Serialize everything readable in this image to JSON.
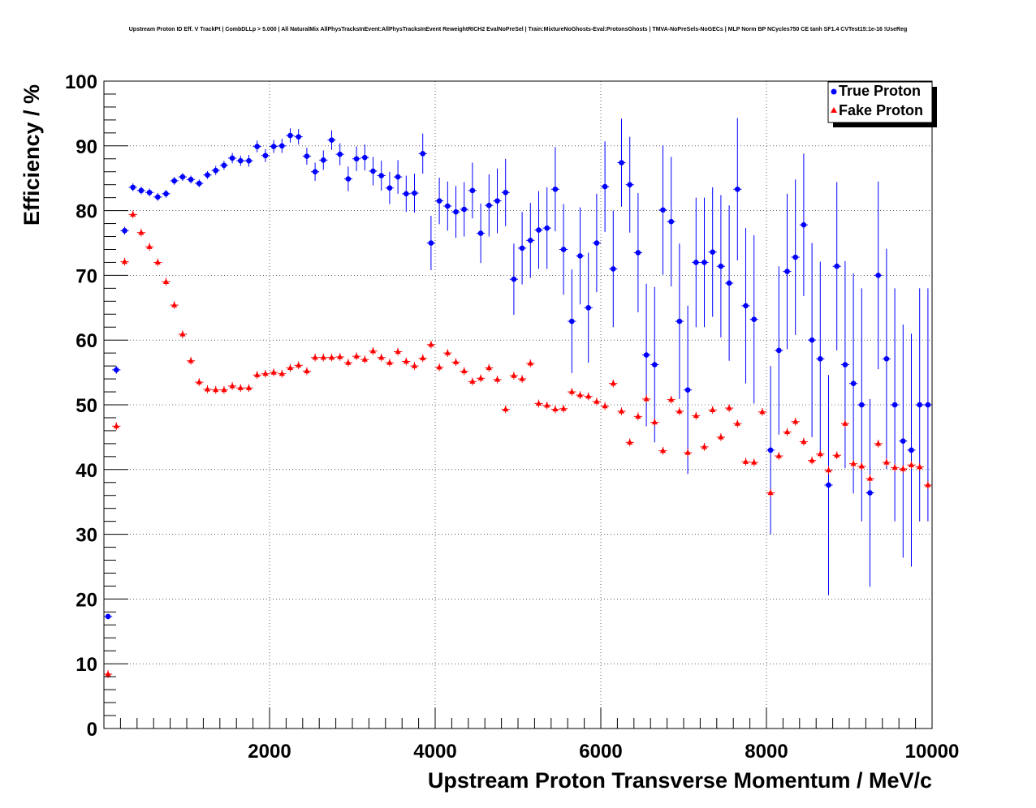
{
  "chart_data": {
    "type": "scatter",
    "title": "Upstream Proton ID Eff. V TrackPt | CombDLLp > 5.000 | All NaturalMix AllPhysTracksInEvent:AllPhysTracksInEvent ReweightRICH2 EvalNoPreSel | Train:MixtureNoGhosts-Eval:ProtonsGhosts | TMVA-NoPreSels-NoGECs | MLP Norm BP NCycles750 CE tanh SF1.4 CVTest15:1e-16 !UseReg",
    "xlabel": "Upstream Proton Transverse Momentum / MeV/c",
    "ylabel": "Efficiency / %",
    "xlim": [
      0,
      10000
    ],
    "ylim": [
      0,
      100
    ],
    "x_ticks": [
      2000,
      4000,
      6000,
      8000,
      10000
    ],
    "y_ticks": [
      0,
      10,
      20,
      30,
      40,
      50,
      60,
      70,
      80,
      90,
      100
    ],
    "grid": true,
    "legend_position": "top-right",
    "series": [
      {
        "name": "True Proton",
        "color": "#0000ff",
        "marker": "circle",
        "x": [
          50,
          150,
          250,
          350,
          450,
          550,
          650,
          750,
          850,
          950,
          1050,
          1150,
          1250,
          1350,
          1450,
          1550,
          1650,
          1750,
          1850,
          1950,
          2050,
          2150,
          2250,
          2350,
          2450,
          2550,
          2650,
          2750,
          2850,
          2950,
          3050,
          3150,
          3250,
          3350,
          3450,
          3550,
          3650,
          3750,
          3850,
          3950,
          4050,
          4150,
          4250,
          4350,
          4450,
          4550,
          4650,
          4750,
          4850,
          4950,
          5050,
          5150,
          5250,
          5350,
          5450,
          5550,
          5650,
          5750,
          5850,
          5950,
          6050,
          6150,
          6250,
          6350,
          6450,
          6550,
          6650,
          6750,
          6850,
          6950,
          7050,
          7150,
          7250,
          7350,
          7450,
          7550,
          7650,
          7750,
          7850,
          7950,
          8050,
          8150,
          8250,
          8350,
          8450,
          8550,
          8650,
          8750,
          8850,
          8950,
          9050,
          9150,
          9250,
          9350,
          9450,
          9550,
          9650,
          9750,
          9850,
          9950
        ],
        "y": [
          17.3,
          55.4,
          76.9,
          83.6,
          83.1,
          82.8,
          82.1,
          82.6,
          84.6,
          85.2,
          84.8,
          84.2,
          85.5,
          86.2,
          87.0,
          88.1,
          87.7,
          87.7,
          89.9,
          88.5,
          89.9,
          90.0,
          91.6,
          91.4,
          88.4,
          86.0,
          87.8,
          90.9,
          88.7,
          84.9,
          88.0,
          88.2,
          86.1,
          85.4,
          83.5,
          85.2,
          82.6,
          82.7,
          88.8,
          75.0,
          81.5,
          80.7,
          79.8,
          80.2,
          83.1,
          76.5,
          80.8,
          81.5,
          82.8,
          69.4,
          74.2,
          75.4,
          77.0,
          77.3,
          83.3,
          74.0,
          62.9,
          73.0,
          65.0,
          75.0,
          83.7,
          71.0,
          87.4,
          84.0,
          73.5,
          57.7,
          56.2,
          80.1,
          78.3,
          62.9,
          52.3,
          72.0,
          72.0,
          73.6,
          71.4,
          68.8,
          83.3,
          65.3,
          63.2,
          null,
          43.0,
          58.4,
          70.6,
          72.8,
          77.8,
          60.0,
          57.1,
          37.6,
          71.4,
          56.2,
          53.3,
          50.0,
          36.4,
          70.0,
          57.1,
          50.0,
          44.4,
          43.0,
          50.0,
          50.0
        ],
        "err": [
          0.4,
          0.6,
          0.6,
          0.6,
          0.6,
          0.6,
          0.6,
          0.6,
          0.6,
          0.6,
          0.6,
          0.6,
          0.6,
          0.7,
          0.7,
          0.8,
          0.8,
          0.9,
          0.9,
          1.0,
          1.0,
          1.1,
          1.1,
          1.2,
          1.3,
          1.4,
          1.5,
          1.5,
          1.7,
          1.9,
          1.9,
          2.0,
          2.2,
          2.3,
          2.5,
          2.6,
          2.8,
          3.0,
          3.1,
          4.2,
          3.6,
          3.8,
          4.0,
          4.2,
          4.3,
          4.6,
          4.8,
          5.0,
          5.2,
          5.5,
          5.6,
          5.8,
          6.0,
          6.3,
          6.5,
          7.0,
          8.0,
          7.5,
          8.5,
          7.6,
          7.0,
          9.0,
          6.8,
          7.4,
          9.2,
          11.0,
          12.0,
          10.0,
          10.0,
          12.0,
          13.0,
          10.0,
          10.0,
          10.0,
          11.0,
          12.0,
          11.0,
          12.0,
          13.0,
          null,
          13.0,
          13.0,
          12.0,
          12.0,
          11.0,
          15.0,
          15.0,
          17.0,
          13.0,
          16.0,
          17.0,
          18.0,
          14.5,
          14.5,
          17.0,
          18.0,
          18.0,
          18.0,
          18.0,
          18.0
        ]
      },
      {
        "name": "Fake Proton",
        "color": "#ff0000",
        "marker": "triangle",
        "x": [
          50,
          150,
          250,
          350,
          450,
          550,
          650,
          750,
          850,
          950,
          1050,
          1150,
          1250,
          1350,
          1450,
          1550,
          1650,
          1750,
          1850,
          1950,
          2050,
          2150,
          2250,
          2350,
          2450,
          2550,
          2650,
          2750,
          2850,
          2950,
          3050,
          3150,
          3250,
          3350,
          3450,
          3550,
          3650,
          3750,
          3850,
          3950,
          4050,
          4150,
          4250,
          4350,
          4450,
          4550,
          4650,
          4750,
          4850,
          4950,
          5050,
          5150,
          5250,
          5350,
          5450,
          5550,
          5650,
          5750,
          5850,
          5950,
          6050,
          6150,
          6250,
          6350,
          6450,
          6550,
          6650,
          6750,
          6850,
          6950,
          7050,
          7150,
          7250,
          7350,
          7450,
          7550,
          7650,
          7750,
          7850,
          7950,
          8050,
          8150,
          8250,
          8350,
          8450,
          8550,
          8650,
          8750,
          8850,
          8950,
          9050,
          9150,
          9250,
          9350,
          9450,
          9550,
          9650,
          9750,
          9850,
          9950
        ],
        "y": [
          8.4,
          46.7,
          72.1,
          79.4,
          76.6,
          74.4,
          72.0,
          69.0,
          65.4,
          60.9,
          56.8,
          53.5,
          52.4,
          52.3,
          52.3,
          52.9,
          52.6,
          52.6,
          54.6,
          54.8,
          55.0,
          54.8,
          55.7,
          56.1,
          55.2,
          57.3,
          57.3,
          57.3,
          57.4,
          56.5,
          57.5,
          57.0,
          58.3,
          57.3,
          56.5,
          58.2,
          56.7,
          56.0,
          57.2,
          59.3,
          55.8,
          58.0,
          56.6,
          55.2,
          53.6,
          54.1,
          55.7,
          53.9,
          49.3,
          54.5,
          54.0,
          56.4,
          50.2,
          49.9,
          49.3,
          49.4,
          52.0,
          51.5,
          51.3,
          50.5,
          49.8,
          53.3,
          49.0,
          44.2,
          48.2,
          50.9,
          47.3,
          42.9,
          50.8,
          49.0,
          42.6,
          48.3,
          43.5,
          49.2,
          45.0,
          49.5,
          47.1,
          41.2,
          41.1,
          48.9,
          36.4,
          42.1,
          45.8,
          47.4,
          44.3,
          41.4,
          42.4,
          39.9,
          42.2,
          47.1,
          40.9,
          40.5,
          38.6,
          44.0,
          41.1,
          40.3,
          40.1,
          40.7,
          40.4,
          37.6
        ]
      }
    ]
  }
}
